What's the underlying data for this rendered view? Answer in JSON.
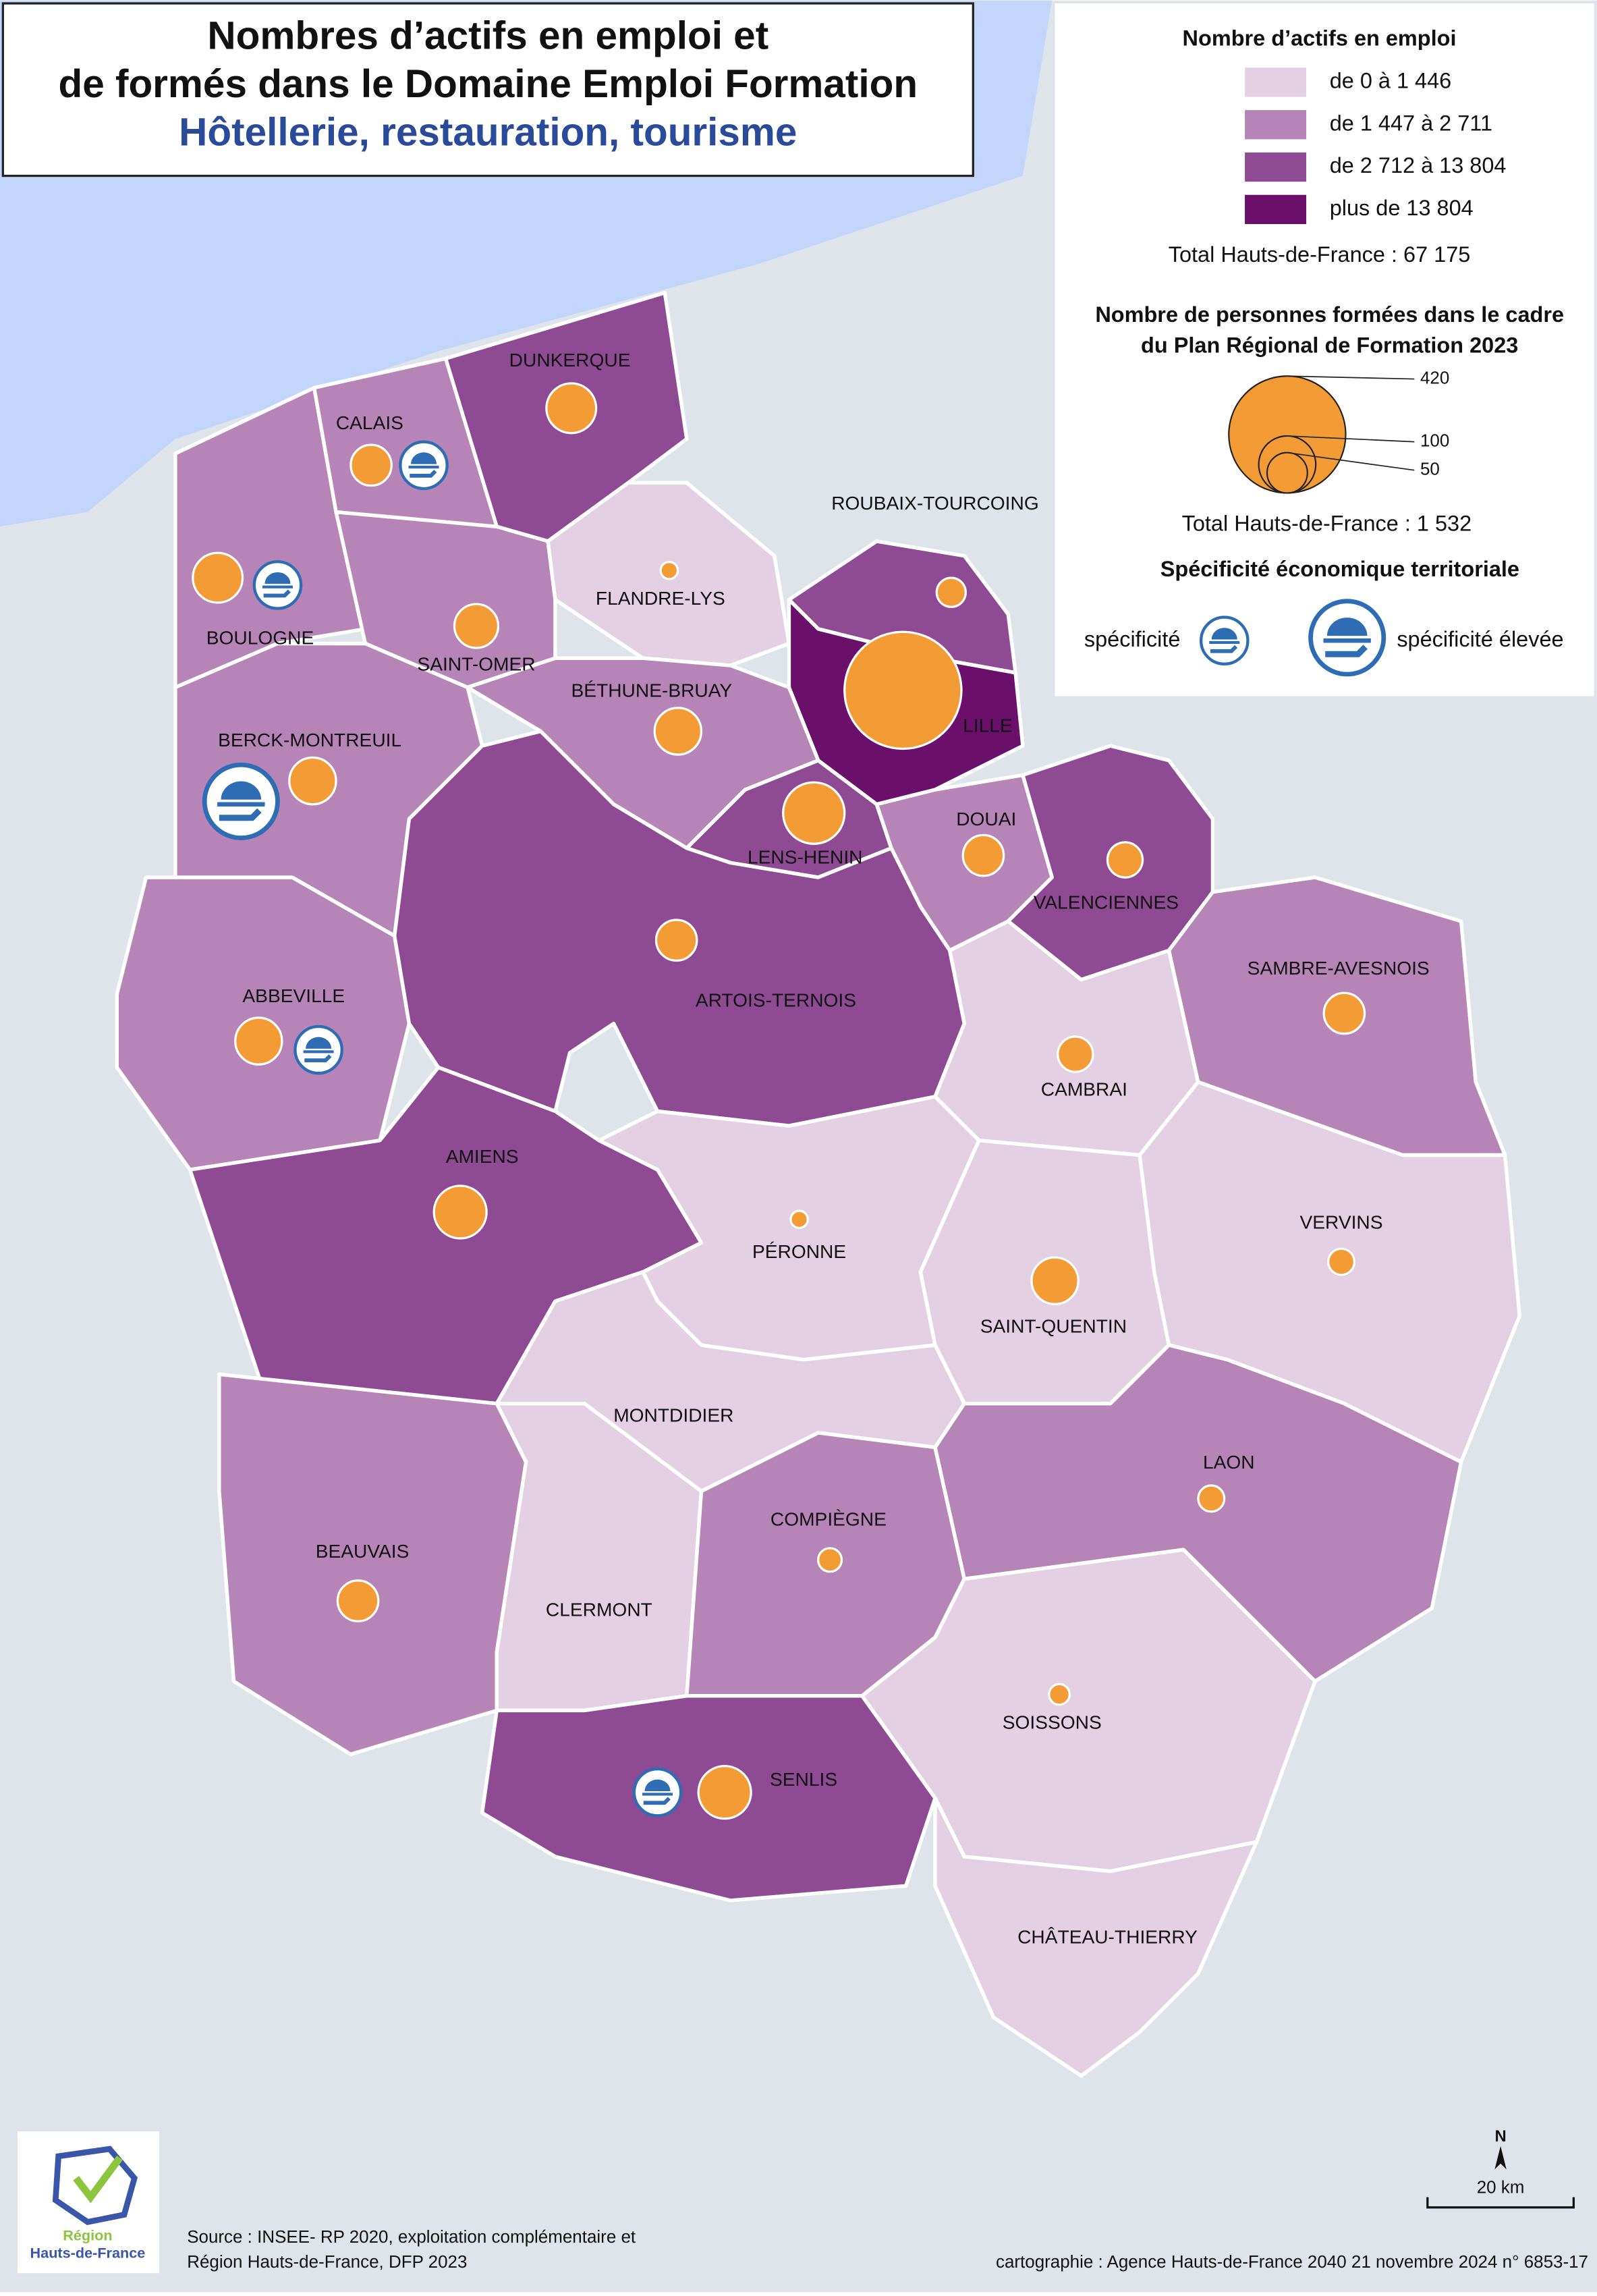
{
  "header": {
    "title_line1": "Nombres d’actifs en emploi et",
    "title_line2": "de formés dans le Domaine Emploi Formation",
    "subtitle": "Hôtellerie, restauration, tourisme"
  },
  "legend": {
    "employment_title": "Nombre d’actifs en emploi",
    "classes": [
      {
        "label": "de 0 à 1 446",
        "color": "#e3d0e3"
      },
      {
        "label": "de 1 447 à 2 711",
        "color": "#b784b7"
      },
      {
        "label": "de 2 712 à 13 804",
        "color": "#8e4a92"
      },
      {
        "label": "plus de 13 804",
        "color": "#6a0f6a"
      }
    ],
    "employment_total": "Total Hauts-de-France : 67 175",
    "trained_title_line1": "Nombre de personnes formées dans le cadre",
    "trained_title_line2": "du Plan Régional de Formation 2023",
    "trained_sizes": [
      420,
      100,
      50
    ],
    "trained_color": "#f39b34",
    "trained_total": "Total Hauts-de-France :  1 532",
    "specificity_title": "Spécificité économique territoriale",
    "specificity_labels": [
      "spécificité",
      "spécificité élevée"
    ]
  },
  "zones": [
    {
      "name": "DUNKERQUE",
      "class": 2,
      "trained": 76,
      "specificity": 0
    },
    {
      "name": "CALAIS",
      "class": 1,
      "trained": 51,
      "specificity": 1
    },
    {
      "name": "BOULOGNE",
      "class": 1,
      "trained": 76,
      "specificity": 1
    },
    {
      "name": "SAINT-OMER",
      "class": 1,
      "trained": 59,
      "specificity": 0
    },
    {
      "name": "FLANDRE-LYS",
      "class": 0,
      "trained": 9,
      "specificity": 0
    },
    {
      "name": "ROUBAIX-TOURCOING",
      "class": 2,
      "trained": 26,
      "specificity": 0
    },
    {
      "name": "LILLE",
      "class": 3,
      "trained": 420,
      "specificity": 0
    },
    {
      "name": "BÉTHUNE-BRUAY",
      "class": 1,
      "trained": 67,
      "specificity": 0
    },
    {
      "name": "BERCK-MONTREUIL",
      "class": 1,
      "trained": 67,
      "specificity": 2
    },
    {
      "name": "LENS-HENIN",
      "class": 2,
      "trained": 116,
      "specificity": 0
    },
    {
      "name": "DOUAI",
      "class": 1,
      "trained": 51,
      "specificity": 0
    },
    {
      "name": "VALENCIENNES",
      "class": 2,
      "trained": 38,
      "specificity": 0
    },
    {
      "name": "ABBEVILLE",
      "class": 1,
      "trained": 67,
      "specificity": 1
    },
    {
      "name": "ARTOIS-TERNOIS",
      "class": 2,
      "trained": 51,
      "specificity": 0
    },
    {
      "name": "CAMBRAI",
      "class": 0,
      "trained": 38,
      "specificity": 0
    },
    {
      "name": "SAMBRE-AVESNOIS",
      "class": 1,
      "trained": 51,
      "specificity": 0
    },
    {
      "name": "AMIENS",
      "class": 2,
      "trained": 85,
      "specificity": 0
    },
    {
      "name": "PÉRONNE",
      "class": 0,
      "trained": 9,
      "specificity": 0
    },
    {
      "name": "SAINT-QUENTIN",
      "class": 0,
      "trained": 67,
      "specificity": 0
    },
    {
      "name": "VERVINS",
      "class": 0,
      "trained": 21,
      "specificity": 0
    },
    {
      "name": "MONTDIDIER",
      "class": 0,
      "trained": null,
      "specificity": 0
    },
    {
      "name": "BEAUVAIS",
      "class": 1,
      "trained": 51,
      "specificity": 0
    },
    {
      "name": "CLERMONT",
      "class": 0,
      "trained": null,
      "specificity": 0
    },
    {
      "name": "COMPIÈGNE",
      "class": 1,
      "trained": 17,
      "specificity": 0
    },
    {
      "name": "LAON",
      "class": 1,
      "trained": 21,
      "specificity": 0
    },
    {
      "name": "SOISSONS",
      "class": 0,
      "trained": 13,
      "specificity": 0
    },
    {
      "name": "SENLIS",
      "class": 2,
      "trained": 85,
      "specificity": 1
    },
    {
      "name": "CHÂTEAU-THIERRY",
      "class": 0,
      "trained": null,
      "specificity": 0
    }
  ],
  "footer": {
    "logo_line1": "Région",
    "logo_line2": "Hauts-de-France",
    "source_line1": "Source : INSEE- RP 2020, exploitation complémentaire et",
    "source_line2": "Région Hauts-de-France, DFP 2023",
    "credits": "cartographie : Agence Hauts-de-France 2040  21 novembre 2024   n° 6853-17",
    "north": "N",
    "scale": "20 km"
  }
}
